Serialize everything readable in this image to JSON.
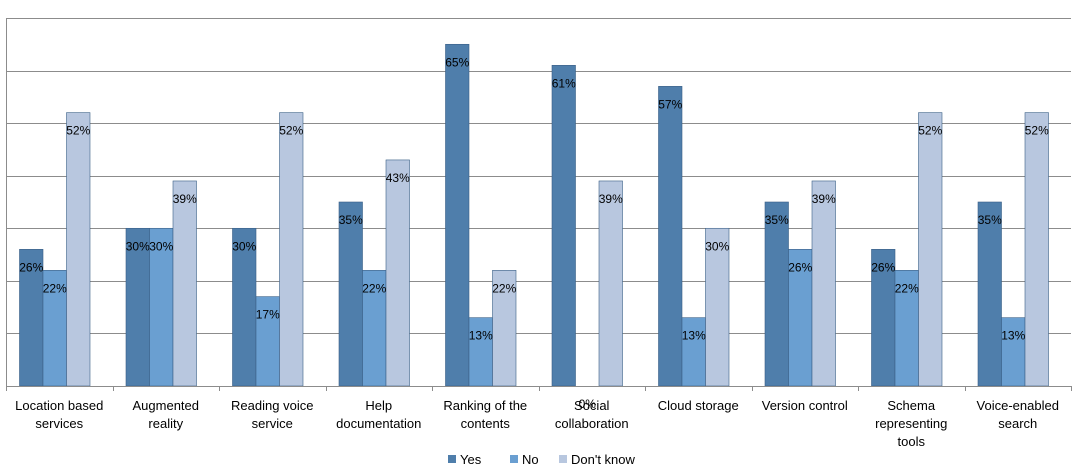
{
  "chart_data": {
    "type": "bar",
    "categories": [
      [
        "Location based",
        "services"
      ],
      [
        "Augmented",
        "reality"
      ],
      [
        "Reading voice",
        "service"
      ],
      [
        "Help",
        "documentation"
      ],
      [
        "Ranking of the",
        "contents"
      ],
      [
        "Social",
        "collaboration"
      ],
      [
        "Cloud storage"
      ],
      [
        "Version control"
      ],
      [
        "Schema",
        "representing",
        "tools"
      ],
      [
        "Voice-enabled",
        "search"
      ]
    ],
    "series": [
      {
        "name": "Yes",
        "color": "#4f7eab",
        "values": [
          26,
          30,
          30,
          35,
          65,
          61,
          57,
          35,
          26,
          35
        ],
        "labels": [
          "26%",
          "30%",
          "30%",
          "35%",
          "65%",
          "61%",
          "57%",
          "35%",
          "26%",
          "35%"
        ]
      },
      {
        "name": "No",
        "color": "#6a9fd1",
        "values": [
          22,
          30,
          17,
          22,
          13,
          0,
          13,
          26,
          22,
          13
        ],
        "labels": [
          "22%",
          "30%",
          "17%",
          "22%",
          "13%",
          "0%",
          "13%",
          "26%",
          "22%",
          "13%"
        ]
      },
      {
        "name": "Don't know",
        "color": "#b8c7df",
        "values": [
          52,
          39,
          52,
          43,
          22,
          39,
          30,
          39,
          52,
          52
        ],
        "labels": [
          "52%",
          "39%",
          "52%",
          "43%",
          "22%",
          "39%",
          "30%",
          "39%",
          "52%",
          "52%"
        ]
      }
    ],
    "ylim": [
      0,
      70
    ],
    "grid": true,
    "legend_position": "bottom"
  }
}
